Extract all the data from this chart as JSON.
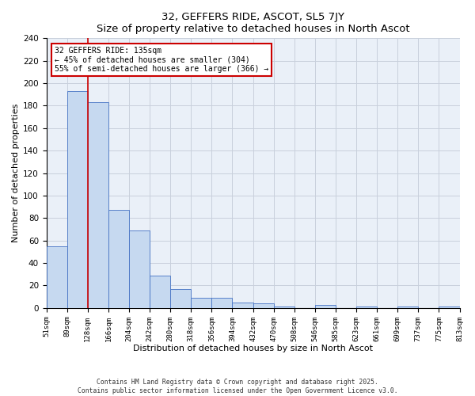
{
  "title": "32, GEFFERS RIDE, ASCOT, SL5 7JY",
  "subtitle": "Size of property relative to detached houses in North Ascot",
  "xlabel": "Distribution of detached houses by size in North Ascot",
  "ylabel": "Number of detached properties",
  "bar_values": [
    55,
    193,
    183,
    87,
    69,
    29,
    17,
    9,
    9,
    5,
    4,
    1,
    0,
    3,
    0,
    1,
    0,
    1,
    0,
    1
  ],
  "bar_labels": [
    "51sqm",
    "89sqm",
    "128sqm",
    "166sqm",
    "204sqm",
    "242sqm",
    "280sqm",
    "318sqm",
    "356sqm",
    "394sqm",
    "432sqm",
    "470sqm",
    "508sqm",
    "546sqm",
    "585sqm",
    "623sqm",
    "661sqm",
    "699sqm",
    "737sqm",
    "775sqm",
    "813sqm"
  ],
  "bar_color": "#c6d9f0",
  "bar_edge_color": "#4472c4",
  "ylim": [
    0,
    240
  ],
  "yticks": [
    0,
    20,
    40,
    60,
    80,
    100,
    120,
    140,
    160,
    180,
    200,
    220,
    240
  ],
  "vline_color": "#cc0000",
  "annotation_title": "32 GEFFERS RIDE: 135sqm",
  "annotation_line1": "← 45% of detached houses are smaller (304)",
  "annotation_line2": "55% of semi-detached houses are larger (366) →",
  "annotation_box_color": "#ffffff",
  "annotation_box_edge": "#cc0000",
  "footer1": "Contains HM Land Registry data © Crown copyright and database right 2025.",
  "footer2": "Contains public sector information licensed under the Open Government Licence v3.0.",
  "background_color": "#ffffff",
  "ax_background": "#eaf0f8",
  "grid_color": "#c8d0dc"
}
